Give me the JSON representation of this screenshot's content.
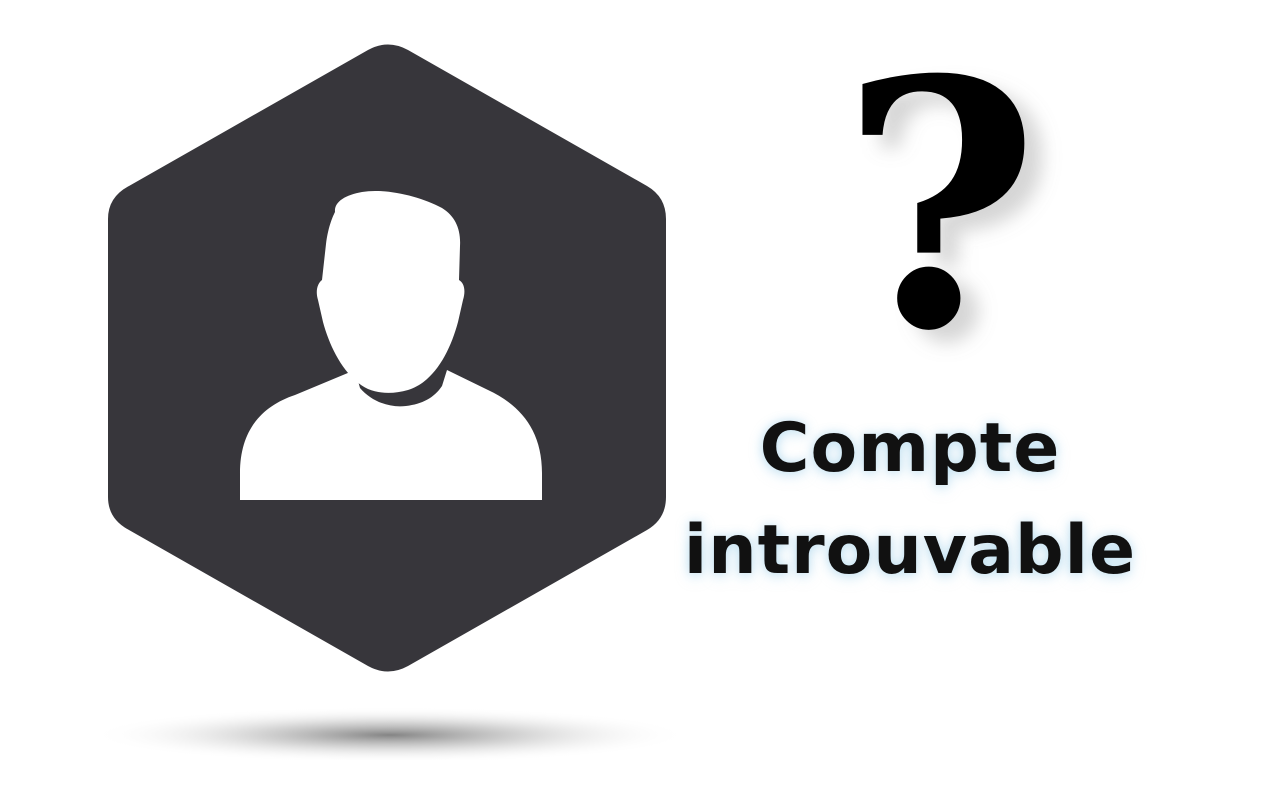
{
  "message": {
    "line1": "Compte",
    "line2": "introuvable"
  },
  "icons": {
    "avatar": "user-silhouette-icon",
    "question": "question-mark-icon"
  },
  "colors": {
    "background": "#ffffff",
    "hexagon": "#37363b",
    "silhouette": "#ffffff",
    "question_mark": "#000000",
    "text": "#111111",
    "text_glow": "#a7d8ef"
  }
}
